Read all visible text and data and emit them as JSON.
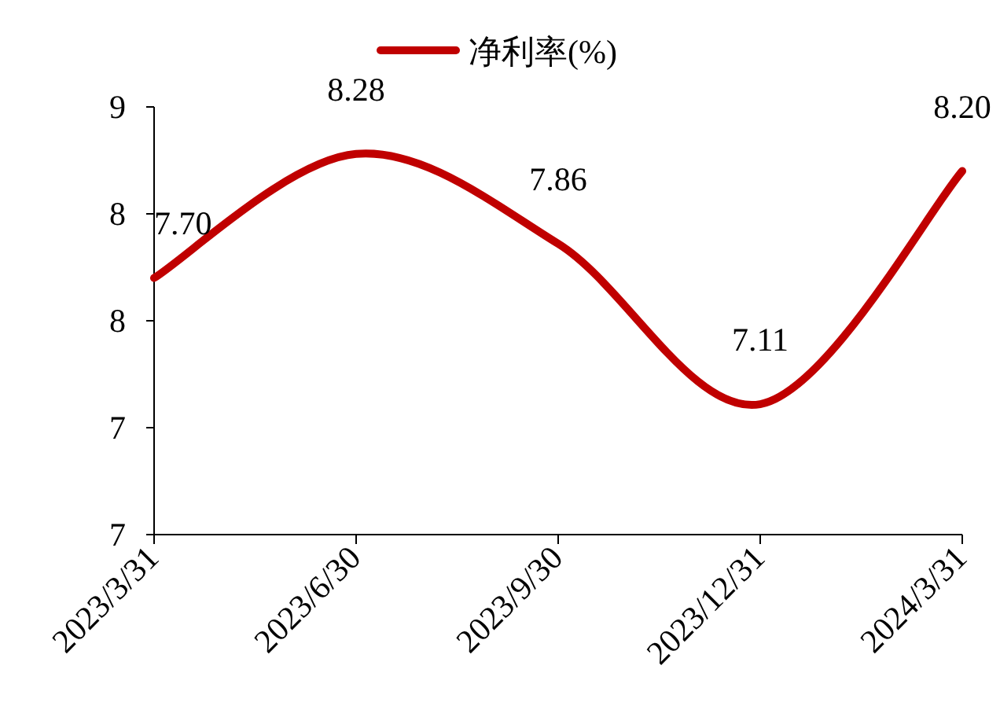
{
  "chart_data": {
    "type": "line",
    "categories": [
      "2023/3/31",
      "2023/6/30",
      "2023/9/30",
      "2023/12/31",
      "2024/3/31"
    ],
    "series": [
      {
        "name": "净利率(%)",
        "color": "#c00000",
        "values": [
          7.7,
          8.28,
          7.86,
          7.11,
          8.2
        ],
        "value_labels": [
          "7.70",
          "8.28",
          "7.86",
          "7.11",
          "8.20"
        ]
      }
    ],
    "ylim": [
      6.5,
      8.5
    ],
    "yticks": [
      {
        "value": 6.5,
        "label": "7"
      },
      {
        "value": 7,
        "label": "7"
      },
      {
        "value": 7.5,
        "label": "8"
      },
      {
        "value": 8,
        "label": "8"
      },
      {
        "value": 8.5,
        "label": "9"
      }
    ],
    "legend": "top",
    "grid": false,
    "line_style": "solid"
  }
}
